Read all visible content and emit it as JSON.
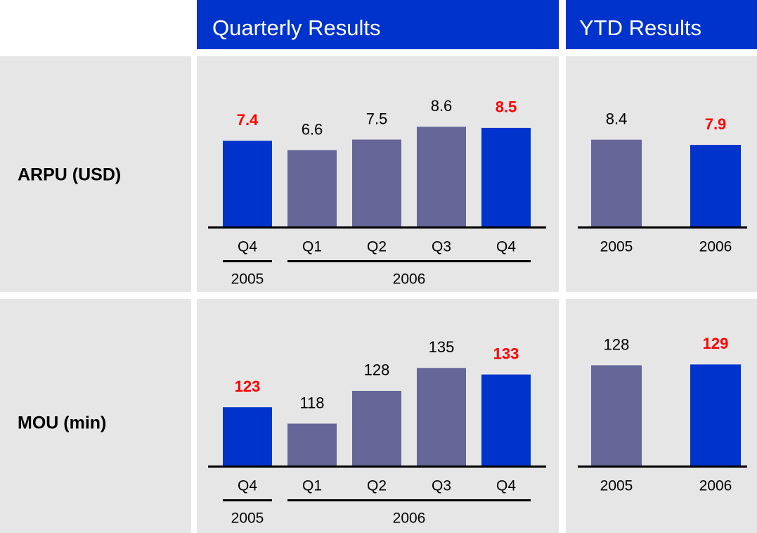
{
  "columns": [
    "Quarterly Results",
    "YTD Results"
  ],
  "rows": [
    "ARPU (USD)",
    "MOU (min)"
  ],
  "chart_data": [
    {
      "type": "bar",
      "categories": [
        "Q4",
        "Q1",
        "Q2",
        "Q3",
        "Q4"
      ],
      "values": [
        7.4,
        6.6,
        7.5,
        8.6,
        8.5
      ],
      "colors": [
        "#0033cc",
        "#666699",
        "#666699",
        "#666699",
        "#0033cc"
      ],
      "label_colors": [
        "#ff0000",
        "#000000",
        "#000000",
        "#000000",
        "#ff0000"
      ],
      "groups": [
        {
          "label": "2005",
          "span": 1
        },
        {
          "label": "2006",
          "span": 4
        }
      ],
      "ylim": [
        0,
        10
      ]
    },
    {
      "type": "bar",
      "categories": [
        "2005",
        "2006"
      ],
      "values": [
        8.4,
        7.9
      ],
      "colors": [
        "#666699",
        "#0033cc"
      ],
      "label_colors": [
        "#000000",
        "#ff0000"
      ],
      "ylim": [
        0,
        10
      ]
    },
    {
      "type": "bar",
      "categories": [
        "Q4",
        "Q1",
        "Q2",
        "Q3",
        "Q4"
      ],
      "values": [
        123,
        118,
        128,
        135,
        133
      ],
      "colors": [
        "#0033cc",
        "#666699",
        "#666699",
        "#666699",
        "#0033cc"
      ],
      "label_colors": [
        "#ff0000",
        "#000000",
        "#000000",
        "#000000",
        "#ff0000"
      ],
      "groups": [
        {
          "label": "2005",
          "span": 1
        },
        {
          "label": "2006",
          "span": 4
        }
      ],
      "ylim": [
        105,
        140
      ]
    },
    {
      "type": "bar",
      "categories": [
        "2005",
        "2006"
      ],
      "values": [
        128,
        129
      ],
      "colors": [
        "#666699",
        "#0033cc"
      ],
      "label_colors": [
        "#000000",
        "#ff0000"
      ],
      "ylim": [
        0,
        140
      ]
    }
  ]
}
